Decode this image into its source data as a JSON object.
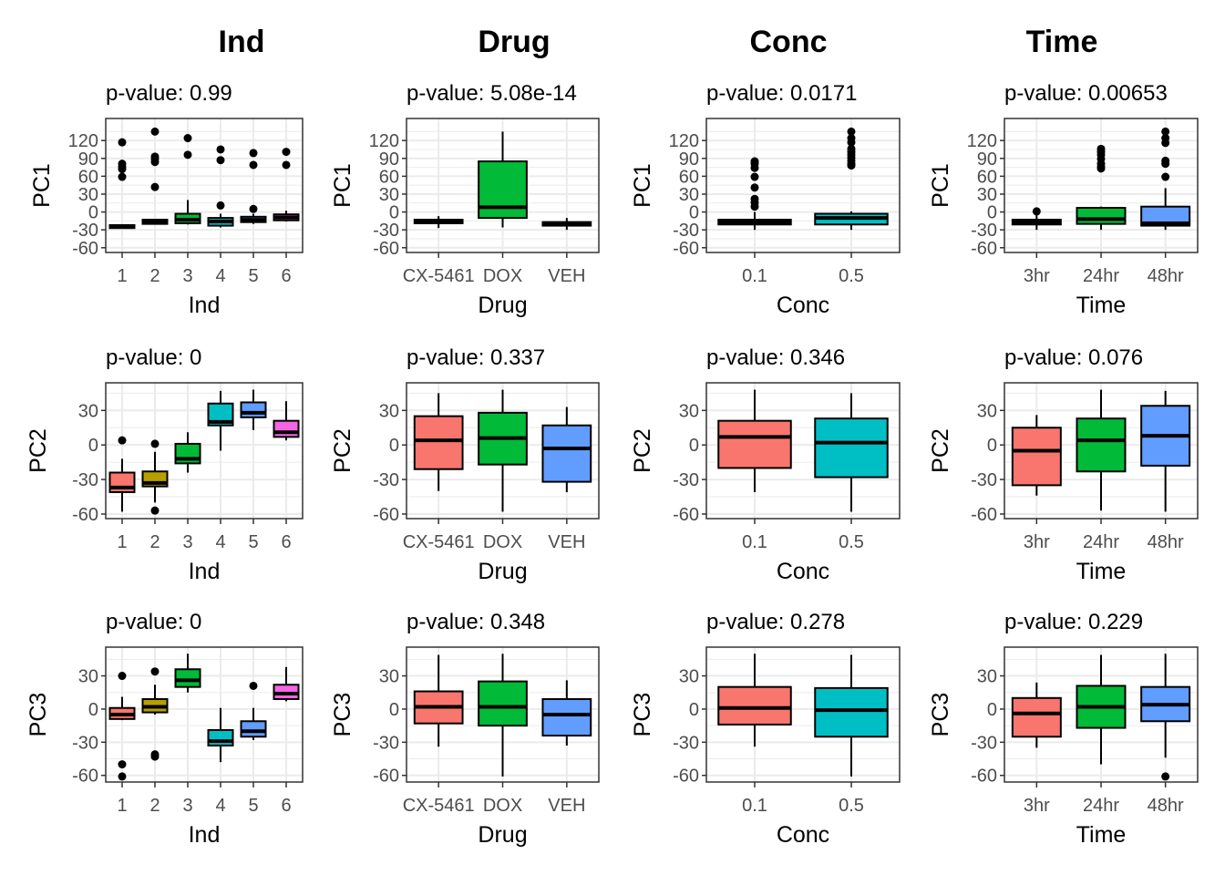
{
  "column_titles": [
    "Ind",
    "Drug",
    "Conc",
    "Time"
  ],
  "colors": {
    "Ind": [
      "#F8766D",
      "#B79F00",
      "#00BA38",
      "#00BFC4",
      "#619CFF",
      "#F564E3"
    ],
    "Drug": [
      "#F8766D",
      "#00BA38",
      "#619CFF"
    ],
    "Conc": [
      "#F8766D",
      "#00BFC4"
    ],
    "Time": [
      "#F8766D",
      "#00BA38",
      "#619CFF"
    ],
    "grid": "#ebebeb",
    "border": "#333333",
    "tick_text": "#4d4d4d"
  },
  "chart_data": [
    {
      "type": "box",
      "row": 0,
      "col": 0,
      "title": "p-value: 0.99",
      "xlabel": "Ind",
      "ylabel": "PC1",
      "ylim": [
        -68,
        157
      ],
      "yticks": [
        -60,
        -30,
        0,
        30,
        60,
        90,
        120
      ],
      "categories": [
        "1",
        "2",
        "3",
        "4",
        "5",
        "6"
      ],
      "boxes": [
        {
          "q1": -27,
          "median": -25,
          "q3": -22,
          "lo": -27,
          "hi": -22,
          "outliers": [
            117,
            81,
            76,
            72,
            59
          ]
        },
        {
          "q1": -20,
          "median": -17,
          "q3": -13,
          "lo": -21,
          "hi": -13,
          "outliers": [
            135,
            93,
            89,
            84,
            42
          ]
        },
        {
          "q1": -19,
          "median": -13,
          "q3": -3,
          "lo": -21,
          "hi": 20,
          "outliers": [
            124,
            96
          ]
        },
        {
          "q1": -23,
          "median": -16,
          "q3": -10,
          "lo": -26,
          "hi": -3,
          "outliers": [
            105,
            87,
            11
          ]
        },
        {
          "q1": -17,
          "median": -13,
          "q3": -8,
          "lo": -20,
          "hi": -3,
          "outliers": [
            99,
            79,
            5
          ]
        },
        {
          "q1": -14,
          "median": -9,
          "q3": -4,
          "lo": -16,
          "hi": 2,
          "outliers": [
            101,
            79
          ]
        }
      ]
    },
    {
      "type": "box",
      "row": 0,
      "col": 1,
      "title": "p-value: 5.08e-14",
      "xlabel": "Drug",
      "ylabel": "PC1",
      "ylim": [
        -68,
        157
      ],
      "yticks": [
        -60,
        -30,
        0,
        30,
        60,
        90,
        120
      ],
      "categories": [
        "CX-5461",
        "DOX",
        "VEH"
      ],
      "boxes": [
        {
          "q1": -19,
          "median": -16,
          "q3": -13,
          "lo": -27,
          "hi": -7,
          "outliers": []
        },
        {
          "q1": -10,
          "median": 8,
          "q3": 85,
          "lo": -26,
          "hi": 135,
          "outliers": []
        },
        {
          "q1": -23,
          "median": -20,
          "q3": -17,
          "lo": -30,
          "hi": -10,
          "outliers": []
        }
      ]
    },
    {
      "type": "box",
      "row": 0,
      "col": 2,
      "title": "p-value: 0.0171",
      "xlabel": "Conc",
      "ylabel": "PC1",
      "ylim": [
        -68,
        157
      ],
      "yticks": [
        -60,
        -30,
        0,
        30,
        60,
        90,
        120
      ],
      "categories": [
        "0.1",
        "0.5"
      ],
      "boxes": [
        {
          "q1": -21,
          "median": -17,
          "q3": -13,
          "lo": -30,
          "hi": 0,
          "outliers": [
            85,
            81,
            74,
            59,
            41,
            22,
            16,
            9
          ]
        },
        {
          "q1": -21,
          "median": -10,
          "q3": -3,
          "lo": -30,
          "hi": 1,
          "outliers": [
            135,
            124,
            117,
            106,
            101,
            96,
            91,
            86,
            81,
            78
          ]
        }
      ]
    },
    {
      "type": "box",
      "row": 0,
      "col": 3,
      "title": "p-value: 0.00653",
      "xlabel": "Time",
      "ylabel": "PC1",
      "ylim": [
        -68,
        157
      ],
      "yticks": [
        -60,
        -30,
        0,
        30,
        60,
        90,
        120
      ],
      "categories": [
        "3hr",
        "24hr",
        "48hr"
      ],
      "boxes": [
        {
          "q1": -21,
          "median": -17,
          "q3": -13,
          "lo": -30,
          "hi": -5,
          "outliers": [
            1
          ]
        },
        {
          "q1": -20,
          "median": -12,
          "q3": 7,
          "lo": -30,
          "hi": 9,
          "outliers": [
            106,
            101,
            96,
            89,
            81,
            76,
            73
          ]
        },
        {
          "q1": -23,
          "median": -19,
          "q3": 9,
          "lo": -30,
          "hi": 40,
          "outliers": [
            135,
            124,
            116,
            86,
            81,
            59
          ]
        }
      ]
    },
    {
      "type": "box",
      "row": 1,
      "col": 0,
      "title": "p-value: 0",
      "xlabel": "Ind",
      "ylabel": "PC2",
      "ylim": [
        -64,
        54
      ],
      "yticks": [
        -60,
        -30,
        0,
        30
      ],
      "categories": [
        "1",
        "2",
        "3",
        "4",
        "5",
        "6"
      ],
      "boxes": [
        {
          "q1": -41,
          "median": -37,
          "q3": -24,
          "lo": -58,
          "hi": -12,
          "outliers": [
            4
          ]
        },
        {
          "q1": -36,
          "median": -33,
          "q3": -23,
          "lo": -50,
          "hi": -6,
          "outliers": [
            1,
            -57
          ]
        },
        {
          "q1": -16,
          "median": -12,
          "q3": 1,
          "lo": -24,
          "hi": 11,
          "outliers": []
        },
        {
          "q1": 17,
          "median": 20,
          "q3": 36,
          "lo": -5,
          "hi": 47,
          "outliers": []
        },
        {
          "q1": 24,
          "median": 28,
          "q3": 37,
          "lo": 13,
          "hi": 48,
          "outliers": []
        },
        {
          "q1": 7,
          "median": 11,
          "q3": 21,
          "lo": 4,
          "hi": 38,
          "outliers": []
        }
      ]
    },
    {
      "type": "box",
      "row": 1,
      "col": 1,
      "title": "p-value: 0.337",
      "xlabel": "Drug",
      "ylabel": "PC2",
      "ylim": [
        -64,
        54
      ],
      "yticks": [
        -60,
        -30,
        0,
        30
      ],
      "categories": [
        "CX-5461",
        "DOX",
        "VEH"
      ],
      "boxes": [
        {
          "q1": -21,
          "median": 4,
          "q3": 25,
          "lo": -40,
          "hi": 45,
          "outliers": []
        },
        {
          "q1": -17,
          "median": 6,
          "q3": 28,
          "lo": -58,
          "hi": 48,
          "outliers": []
        },
        {
          "q1": -32,
          "median": -3,
          "q3": 17,
          "lo": -41,
          "hi": 33,
          "outliers": []
        }
      ]
    },
    {
      "type": "box",
      "row": 1,
      "col": 2,
      "title": "p-value: 0.346",
      "xlabel": "Conc",
      "ylabel": "PC2",
      "ylim": [
        -64,
        54
      ],
      "yticks": [
        -60,
        -30,
        0,
        30
      ],
      "categories": [
        "0.1",
        "0.5"
      ],
      "boxes": [
        {
          "q1": -20,
          "median": 7,
          "q3": 21,
          "lo": -41,
          "hi": 48,
          "outliers": []
        },
        {
          "q1": -28,
          "median": 2,
          "q3": 23,
          "lo": -58,
          "hi": 45,
          "outliers": []
        }
      ]
    },
    {
      "type": "box",
      "row": 1,
      "col": 3,
      "title": "p-value: 0.076",
      "xlabel": "Time",
      "ylabel": "PC2",
      "ylim": [
        -64,
        54
      ],
      "yticks": [
        -60,
        -30,
        0,
        30
      ],
      "categories": [
        "3hr",
        "24hr",
        "48hr"
      ],
      "boxes": [
        {
          "q1": -35,
          "median": -5,
          "q3": 15,
          "lo": -44,
          "hi": 26,
          "outliers": []
        },
        {
          "q1": -23,
          "median": 4,
          "q3": 23,
          "lo": -57,
          "hi": 48,
          "outliers": []
        },
        {
          "q1": -18,
          "median": 8,
          "q3": 34,
          "lo": -58,
          "hi": 47,
          "outliers": []
        }
      ]
    },
    {
      "type": "box",
      "row": 2,
      "col": 0,
      "title": "p-value: 0",
      "xlabel": "Ind",
      "ylabel": "PC3",
      "ylim": [
        -66,
        56
      ],
      "yticks": [
        -60,
        -30,
        0,
        30
      ],
      "categories": [
        "1",
        "2",
        "3",
        "4",
        "5",
        "6"
      ],
      "boxes": [
        {
          "q1": -9,
          "median": -5,
          "q3": 1,
          "lo": -10,
          "hi": 11,
          "outliers": [
            30,
            -50,
            -61
          ]
        },
        {
          "q1": -3,
          "median": 2,
          "q3": 9,
          "lo": -5,
          "hi": 22,
          "outliers": [
            34,
            -41,
            -43
          ]
        },
        {
          "q1": 20,
          "median": 26,
          "q3": 36,
          "lo": 15,
          "hi": 50,
          "outliers": []
        },
        {
          "q1": -33,
          "median": -29,
          "q3": -19,
          "lo": -48,
          "hi": 1,
          "outliers": []
        },
        {
          "q1": -25,
          "median": -20,
          "q3": -11,
          "lo": -28,
          "hi": 1,
          "outliers": [
            21
          ]
        },
        {
          "q1": 9,
          "median": 14,
          "q3": 22,
          "lo": 7,
          "hi": 38,
          "outliers": []
        }
      ]
    },
    {
      "type": "box",
      "row": 2,
      "col": 1,
      "title": "p-value: 0.348",
      "xlabel": "Drug",
      "ylabel": "PC3",
      "ylim": [
        -66,
        56
      ],
      "yticks": [
        -60,
        -30,
        0,
        30
      ],
      "categories": [
        "CX-5461",
        "DOX",
        "VEH"
      ],
      "boxes": [
        {
          "q1": -13,
          "median": 2,
          "q3": 16,
          "lo": -34,
          "hi": 49,
          "outliers": []
        },
        {
          "q1": -15,
          "median": 2,
          "q3": 25,
          "lo": -61,
          "hi": 50,
          "outliers": []
        },
        {
          "q1": -24,
          "median": -5,
          "q3": 9,
          "lo": -33,
          "hi": 26,
          "outliers": []
        }
      ]
    },
    {
      "type": "box",
      "row": 2,
      "col": 2,
      "title": "p-value: 0.278",
      "xlabel": "Conc",
      "ylabel": "PC3",
      "ylim": [
        -66,
        56
      ],
      "yticks": [
        -60,
        -30,
        0,
        30
      ],
      "categories": [
        "0.1",
        "0.5"
      ],
      "boxes": [
        {
          "q1": -14,
          "median": 1,
          "q3": 20,
          "lo": -34,
          "hi": 50,
          "outliers": []
        },
        {
          "q1": -25,
          "median": -1,
          "q3": 19,
          "lo": -61,
          "hi": 49,
          "outliers": []
        }
      ]
    },
    {
      "type": "box",
      "row": 2,
      "col": 3,
      "title": "p-value: 0.229",
      "xlabel": "Time",
      "ylabel": "PC3",
      "ylim": [
        -66,
        56
      ],
      "yticks": [
        -60,
        -30,
        0,
        30
      ],
      "categories": [
        "3hr",
        "24hr",
        "48hr"
      ],
      "boxes": [
        {
          "q1": -25,
          "median": -4,
          "q3": 10,
          "lo": -35,
          "hi": 24,
          "outliers": []
        },
        {
          "q1": -17,
          "median": 2,
          "q3": 21,
          "lo": -50,
          "hi": 49,
          "outliers": []
        },
        {
          "q1": -11,
          "median": 4,
          "q3": 20,
          "lo": -44,
          "hi": 50,
          "outliers": [
            -61
          ]
        }
      ]
    }
  ]
}
